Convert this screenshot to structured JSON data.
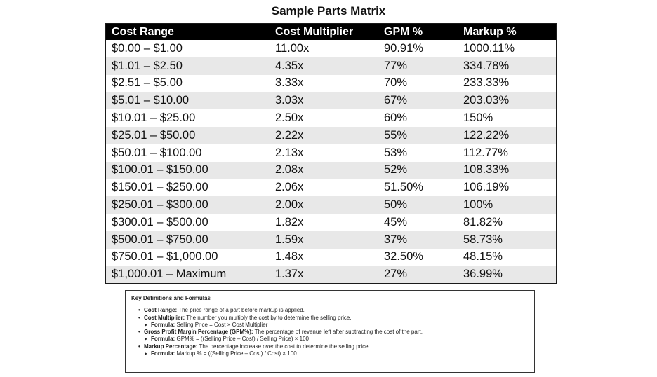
{
  "title": "Sample Parts Matrix",
  "table": {
    "headers": [
      "Cost Range",
      "Cost Multiplier",
      "GPM %",
      "Markup %"
    ],
    "rows": [
      [
        "$0.00 – $1.00",
        "11.00x",
        "90.91%",
        "1000.11%"
      ],
      [
        "$1.01 – $2.50",
        "4.35x",
        "77%",
        "334.78%"
      ],
      [
        "$2.51 – $5.00",
        "3.33x",
        "70%",
        "233.33%"
      ],
      [
        "$5.01 – $10.00",
        "3.03x",
        "67%",
        "203.03%"
      ],
      [
        "$10.01 – $25.00",
        "2.50x",
        "60%",
        "150%"
      ],
      [
        "$25.01 – $50.00",
        "2.22x",
        "55%",
        "122.22%"
      ],
      [
        "$50.01 – $100.00",
        "2.13x",
        "53%",
        "112.77%"
      ],
      [
        "$100.01 – $150.00",
        "2.08x",
        "52%",
        "108.33%"
      ],
      [
        "$150.01 – $250.00",
        "2.06x",
        "51.50%",
        "106.19%"
      ],
      [
        "$250.01 – $300.00",
        "2.00x",
        "50%",
        "100%"
      ],
      [
        "$300.01 – $500.00",
        "1.82x",
        "45%",
        "81.82%"
      ],
      [
        "$500.01 – $750.00",
        "1.59x",
        "37%",
        "58.73%"
      ],
      [
        "$750.01 – $1,000.00",
        "1.48x",
        "32.50%",
        "48.15%"
      ],
      [
        "$1,000.01 – Maximum",
        "1.37x",
        "27%",
        "36.99%"
      ]
    ]
  },
  "definitions": {
    "title": "Key Definitions and Formulas",
    "items": [
      {
        "term": "Cost Range:",
        "desc": "The price range of a part before markup is applied."
      },
      {
        "term": "Cost Multiplier:",
        "desc": "The number you multiply the cost by to determine the selling price.",
        "formula_label": "Formula:",
        "formula": "Selling Price = Cost × Cost Multiplier"
      },
      {
        "term": "Gross Profit Margin Percentage (GPM%):",
        "desc": "The percentage of revenue left after subtracting the cost of the part.",
        "formula_label": "Formula:",
        "formula": "GPM% = ((Selling Price – Cost) / Selling Price) × 100"
      },
      {
        "term": "Markup Percentage:",
        "desc": "The percentage increase over the cost to determine the selling price.",
        "formula_label": "Formula:",
        "formula": "Markup % = ((Selling Price – Cost) / Cost) × 100"
      }
    ]
  }
}
